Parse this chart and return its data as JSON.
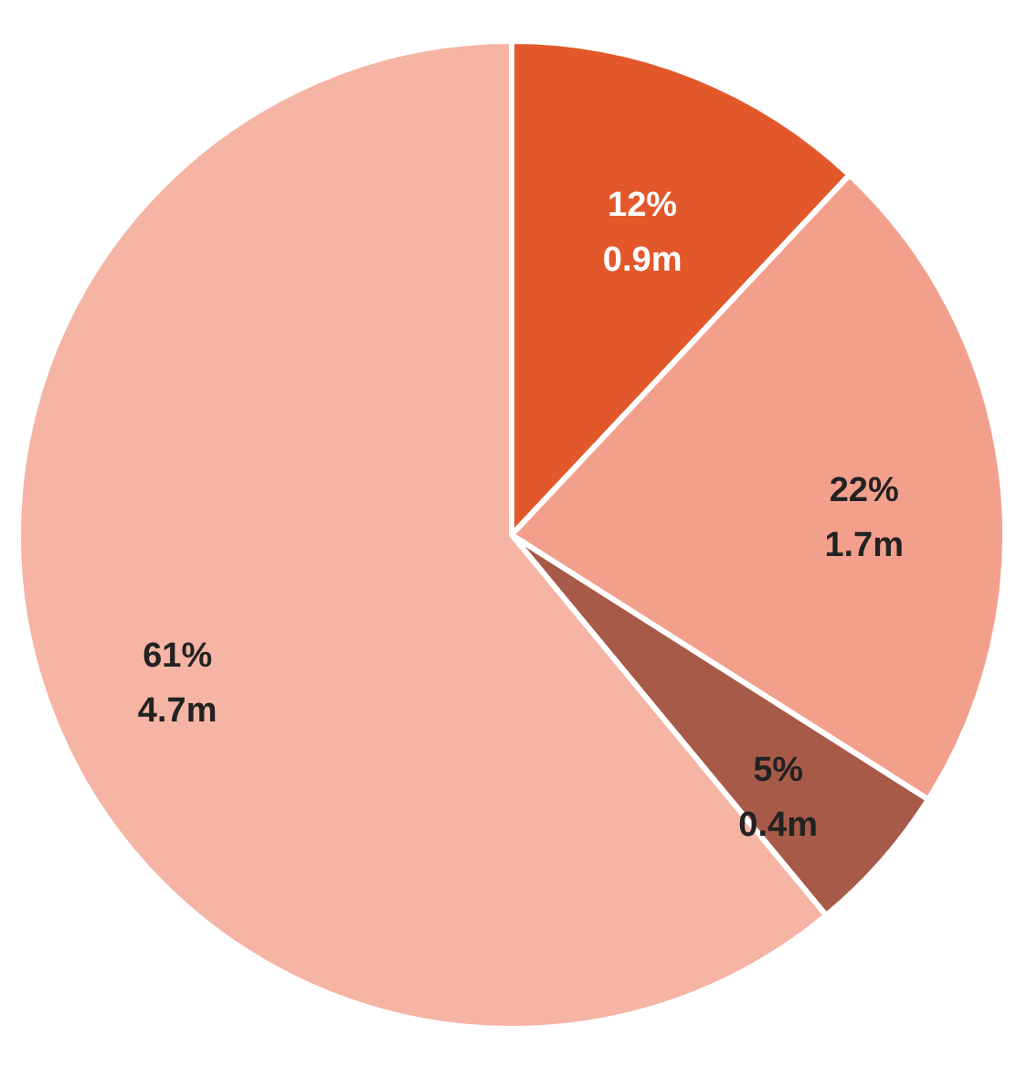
{
  "chart_data": {
    "type": "pie",
    "categories": [
      null,
      null,
      null,
      null
    ],
    "values": [
      12,
      22,
      5,
      61
    ],
    "colors": [
      "#e2582a",
      "#f2a08c",
      "#a85a48",
      "#f5b4a4"
    ],
    "value_labels": [
      "12%\n0.9m",
      "22%\n1.7m",
      "5%\n0.4m",
      "61%\n4.7m"
    ],
    "legend": false
  }
}
